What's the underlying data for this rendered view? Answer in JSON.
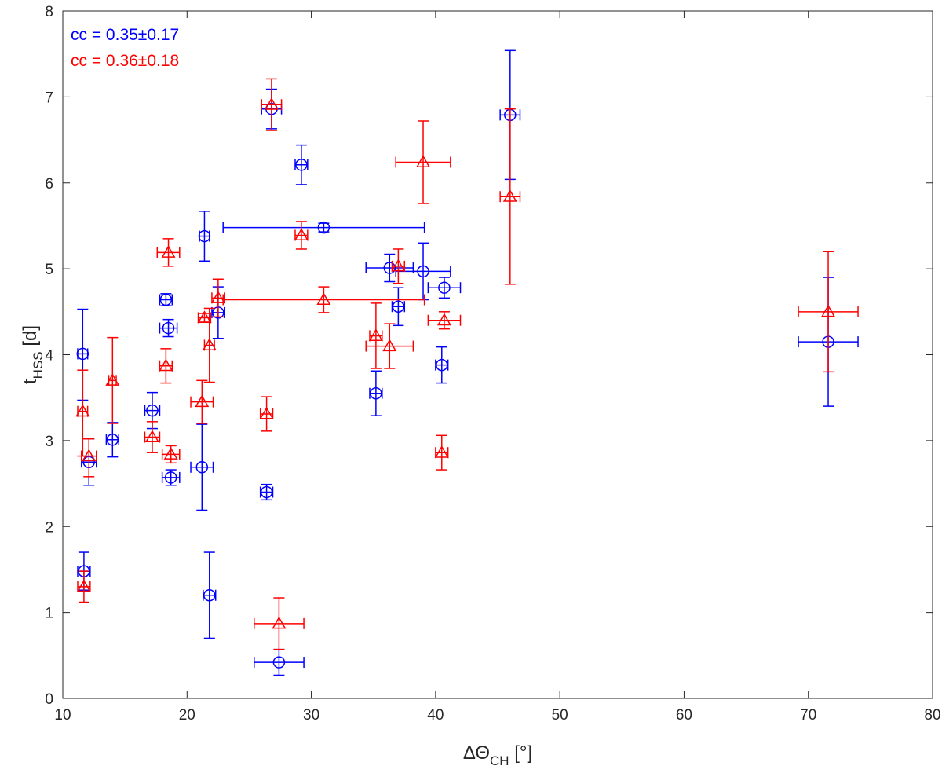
{
  "chart_data": {
    "type": "scatter",
    "title": "",
    "xlabel": {
      "prefix": "ΔΘ",
      "sub": "CH",
      "suffix": " [°]"
    },
    "ylabel": {
      "prefix": "t",
      "sub": "HSS",
      "suffix": " [d]"
    },
    "xlim": [
      10,
      80
    ],
    "ylim": [
      0,
      8
    ],
    "xticks": [
      "10",
      "20",
      "30",
      "40",
      "50",
      "60",
      "70",
      "80"
    ],
    "yticks": [
      "0",
      "1",
      "2",
      "3",
      "4",
      "5",
      "6",
      "7",
      "8"
    ],
    "grid": false,
    "annotations": [
      {
        "text": "cc = 0.35±0.17",
        "color": "#0000ff"
      },
      {
        "text": "cc = 0.36±0.18",
        "color": "#ff0000"
      }
    ],
    "series": [
      {
        "marker": "circle",
        "color": "#0000ff",
        "points": [
          {
            "x": 11.6,
            "y": 4.01,
            "xerr": [
              0.4,
              0.4
            ],
            "yerr": [
              0.54,
              0.52
            ]
          },
          {
            "x": 11.7,
            "y": 1.48,
            "xerr": [
              0.5,
              0.5
            ],
            "yerr": [
              0.22,
              0.22
            ]
          },
          {
            "x": 12.1,
            "y": 2.75,
            "xerr": [
              0.6,
              0.6
            ],
            "yerr": [
              0.27,
              0.27
            ]
          },
          {
            "x": 14.0,
            "y": 3.01,
            "xerr": [
              0.5,
              0.5
            ],
            "yerr": [
              0.2,
              0.2
            ]
          },
          {
            "x": 17.2,
            "y": 3.35,
            "xerr": [
              0.6,
              0.6
            ],
            "yerr": [
              0.21,
              0.21
            ]
          },
          {
            "x": 18.3,
            "y": 4.64,
            "xerr": [
              0.5,
              0.5
            ],
            "yerr": [
              0.07,
              0.07
            ]
          },
          {
            "x": 18.5,
            "y": 4.31,
            "xerr": [
              0.7,
              0.7
            ],
            "yerr": [
              0.1,
              0.1
            ]
          },
          {
            "x": 18.7,
            "y": 2.57,
            "xerr": [
              0.7,
              0.7
            ],
            "yerr": [
              0.09,
              0.09
            ]
          },
          {
            "x": 21.2,
            "y": 2.69,
            "xerr": [
              0.9,
              0.9
            ],
            "yerr": [
              0.5,
              0.5
            ]
          },
          {
            "x": 21.4,
            "y": 5.38,
            "xerr": [
              0.4,
              0.4
            ],
            "yerr": [
              0.29,
              0.29
            ]
          },
          {
            "x": 21.8,
            "y": 1.2,
            "xerr": [
              0.5,
              0.5
            ],
            "yerr": [
              0.5,
              0.5
            ]
          },
          {
            "x": 22.5,
            "y": 4.49,
            "xerr": [
              0.5,
              0.5
            ],
            "yerr": [
              0.3,
              0.3
            ]
          },
          {
            "x": 26.4,
            "y": 2.4,
            "xerr": [
              0.5,
              0.5
            ],
            "yerr": [
              0.09,
              0.09
            ]
          },
          {
            "x": 26.8,
            "y": 6.86,
            "xerr": [
              0.8,
              0.8
            ],
            "yerr": [
              0.23,
              0.23
            ]
          },
          {
            "x": 27.4,
            "y": 0.42,
            "xerr": [
              2.0,
              2.0
            ],
            "yerr": [
              0.15,
              0.15
            ]
          },
          {
            "x": 29.2,
            "y": 6.21,
            "xerr": [
              0.5,
              0.5
            ],
            "yerr": [
              0.23,
              0.23
            ]
          },
          {
            "x": 31.0,
            "y": 5.48,
            "xerr": [
              8.1,
              8.1
            ],
            "yerr": [
              0.05,
              0.05
            ]
          },
          {
            "x": 35.2,
            "y": 3.55,
            "xerr": [
              0.5,
              0.5
            ],
            "yerr": [
              0.26,
              0.26
            ]
          },
          {
            "x": 36.3,
            "y": 5.01,
            "xerr": [
              1.9,
              1.9
            ],
            "yerr": [
              0.16,
              0.16
            ]
          },
          {
            "x": 37.0,
            "y": 4.56,
            "xerr": [
              0.5,
              0.5
            ],
            "yerr": [
              0.22,
              0.22
            ]
          },
          {
            "x": 39.0,
            "y": 4.97,
            "xerr": [
              2.2,
              2.2
            ],
            "yerr": [
              0.33,
              0.33
            ]
          },
          {
            "x": 40.5,
            "y": 3.88,
            "xerr": [
              0.5,
              0.5
            ],
            "yerr": [
              0.21,
              0.21
            ]
          },
          {
            "x": 40.7,
            "y": 4.78,
            "xerr": [
              1.3,
              1.3
            ],
            "yerr": [
              0.12,
              0.12
            ]
          },
          {
            "x": 46.0,
            "y": 6.79,
            "xerr": [
              0.8,
              0.8
            ],
            "yerr": [
              0.75,
              0.75
            ]
          },
          {
            "x": 71.6,
            "y": 4.15,
            "xerr": [
              2.4,
              2.4
            ],
            "yerr": [
              0.75,
              0.75
            ]
          }
        ]
      },
      {
        "marker": "triangle",
        "color": "#ff0000",
        "points": [
          {
            "x": 11.6,
            "y": 3.34,
            "xerr": [
              0.4,
              0.4
            ],
            "yerr": [
              0.52,
              0.48
            ]
          },
          {
            "x": 11.7,
            "y": 1.3,
            "xerr": [
              0.5,
              0.5
            ],
            "yerr": [
              0.18,
              0.18
            ]
          },
          {
            "x": 12.1,
            "y": 2.82,
            "xerr": [
              0.6,
              0.6
            ],
            "yerr": [
              0.24,
              0.2
            ]
          },
          {
            "x": 14.0,
            "y": 3.7,
            "xerr": [
              0.3,
              0.3
            ],
            "yerr": [
              0.5,
              0.5
            ]
          },
          {
            "x": 17.2,
            "y": 3.04,
            "xerr": [
              0.6,
              0.6
            ],
            "yerr": [
              0.18,
              0.18
            ]
          },
          {
            "x": 18.3,
            "y": 3.87,
            "xerr": [
              0.5,
              0.5
            ],
            "yerr": [
              0.2,
              0.2
            ]
          },
          {
            "x": 18.5,
            "y": 5.19,
            "xerr": [
              0.9,
              0.9
            ],
            "yerr": [
              0.16,
              0.16
            ]
          },
          {
            "x": 18.7,
            "y": 2.84,
            "xerr": [
              0.7,
              0.7
            ],
            "yerr": [
              0.1,
              0.1
            ]
          },
          {
            "x": 21.2,
            "y": 3.45,
            "xerr": [
              0.9,
              0.9
            ],
            "yerr": [
              0.25,
              0.25
            ]
          },
          {
            "x": 21.4,
            "y": 4.43,
            "xerr": [
              0.5,
              0.5
            ],
            "yerr": [
              0.05,
              0.05
            ]
          },
          {
            "x": 21.8,
            "y": 4.11,
            "xerr": [
              0.4,
              0.4
            ],
            "yerr": [
              0.43,
              0.43
            ]
          },
          {
            "x": 22.5,
            "y": 4.66,
            "xerr": [
              0.5,
              0.5
            ],
            "yerr": [
              0.22,
              0.22
            ]
          },
          {
            "x": 26.4,
            "y": 3.31,
            "xerr": [
              0.5,
              0.5
            ],
            "yerr": [
              0.2,
              0.2
            ]
          },
          {
            "x": 26.8,
            "y": 6.91,
            "xerr": [
              0.8,
              0.8
            ],
            "yerr": [
              0.3,
              0.3
            ]
          },
          {
            "x": 27.4,
            "y": 0.87,
            "xerr": [
              2.0,
              2.0
            ],
            "yerr": [
              0.3,
              0.3
            ]
          },
          {
            "x": 29.2,
            "y": 5.39,
            "xerr": [
              0.5,
              0.5
            ],
            "yerr": [
              0.16,
              0.16
            ]
          },
          {
            "x": 31.0,
            "y": 4.64,
            "xerr": [
              8.1,
              8.1
            ],
            "yerr": [
              0.15,
              0.15
            ]
          },
          {
            "x": 35.2,
            "y": 4.22,
            "xerr": [
              0.5,
              0.5
            ],
            "yerr": [
              0.38,
              0.38
            ]
          },
          {
            "x": 36.3,
            "y": 4.1,
            "xerr": [
              1.9,
              1.9
            ],
            "yerr": [
              0.26,
              0.26
            ]
          },
          {
            "x": 37.0,
            "y": 5.03,
            "xerr": [
              0.5,
              0.5
            ],
            "yerr": [
              0.2,
              0.2
            ]
          },
          {
            "x": 39.0,
            "y": 6.24,
            "xerr": [
              2.2,
              2.2
            ],
            "yerr": [
              0.48,
              0.48
            ]
          },
          {
            "x": 40.5,
            "y": 2.86,
            "xerr": [
              0.5,
              0.5
            ],
            "yerr": [
              0.2,
              0.2
            ]
          },
          {
            "x": 40.7,
            "y": 4.4,
            "xerr": [
              1.3,
              1.3
            ],
            "yerr": [
              0.1,
              0.1
            ]
          },
          {
            "x": 46.0,
            "y": 5.84,
            "xerr": [
              0.8,
              0.8
            ],
            "yerr": [
              1.02,
              1.02
            ]
          },
          {
            "x": 71.6,
            "y": 4.5,
            "xerr": [
              2.4,
              2.4
            ],
            "yerr": [
              0.7,
              0.7
            ]
          }
        ]
      }
    ]
  }
}
